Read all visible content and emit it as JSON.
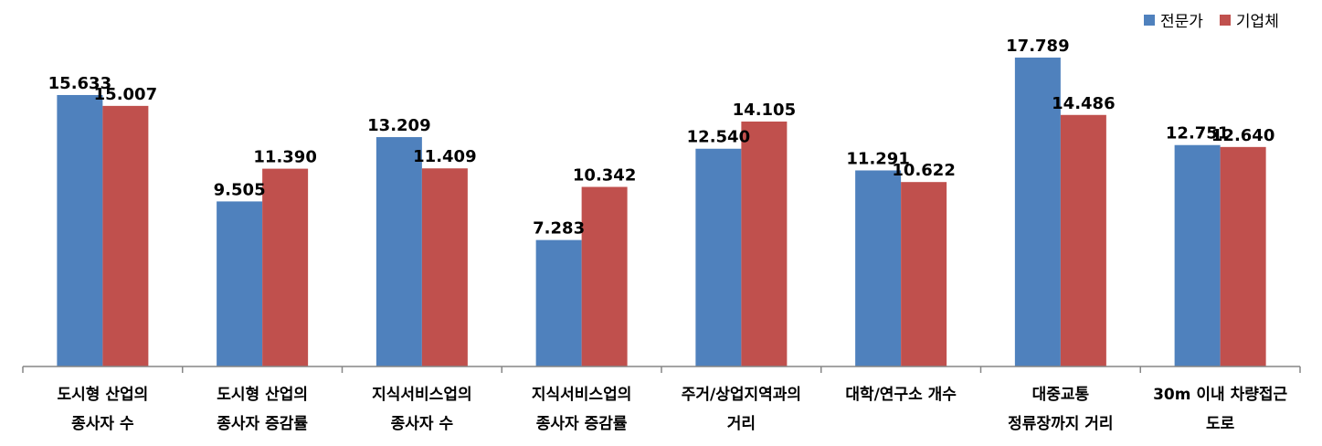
{
  "chart_data": {
    "type": "bar",
    "categories": [
      [
        "도시형 산업의",
        "종사자 수"
      ],
      [
        "도시형 산업의",
        "종사자 증감률"
      ],
      [
        "지식서비스업의",
        "종사자 수"
      ],
      [
        "지식서비스업의",
        "종사자 증감률"
      ],
      [
        "주거/상업지역과의",
        "거리"
      ],
      [
        "대학/연구소 개수",
        ""
      ],
      [
        "대중교통",
        "정류장까지 거리"
      ],
      [
        "30m 이내 차량접근",
        "도로"
      ]
    ],
    "series": [
      {
        "name": "전문가",
        "color": "#4f81bd",
        "values": [
          15.633,
          9.505,
          13.209,
          7.283,
          12.54,
          11.291,
          17.789,
          12.751
        ],
        "labels": [
          "15.633",
          "9.505",
          "13.209",
          "7.283",
          "12.540",
          "11.291",
          "17.789",
          "12.751"
        ]
      },
      {
        "name": "기업체",
        "color": "#c0504d",
        "values": [
          15.007,
          11.39,
          11.409,
          10.342,
          14.105,
          10.622,
          14.486,
          12.64
        ],
        "labels": [
          "15.007",
          "11.390",
          "11.409",
          "10.342",
          "14.105",
          "10.622",
          "14.486",
          "12.640"
        ]
      }
    ],
    "ylim": [
      0,
      20
    ],
    "grid": false,
    "legend_position": "top-right"
  }
}
